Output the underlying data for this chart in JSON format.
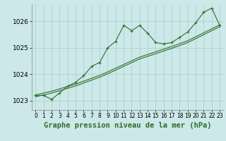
{
  "title": "Graphe pression niveau de la mer (hPa)",
  "background_color": "#cce8e8",
  "grid_color": "#aacccc",
  "line_color": "#2d6e2d",
  "xlim": [
    -0.5,
    23.5
  ],
  "ylim": [
    1022.65,
    1026.65
  ],
  "yticks": [
    1023,
    1024,
    1025,
    1026
  ],
  "xticks": [
    0,
    1,
    2,
    3,
    4,
    5,
    6,
    7,
    8,
    9,
    10,
    11,
    12,
    13,
    14,
    15,
    16,
    17,
    18,
    19,
    20,
    21,
    22,
    23
  ],
  "x": [
    0,
    1,
    2,
    3,
    4,
    5,
    6,
    7,
    8,
    9,
    10,
    11,
    12,
    13,
    14,
    15,
    16,
    17,
    18,
    19,
    20,
    21,
    22,
    23
  ],
  "y_main": [
    1023.2,
    1023.2,
    1023.05,
    1023.3,
    1023.55,
    1023.7,
    1023.95,
    1024.3,
    1024.45,
    1025.0,
    1025.25,
    1025.85,
    1025.65,
    1025.85,
    1025.55,
    1025.2,
    1025.15,
    1025.2,
    1025.4,
    1025.6,
    1025.95,
    1026.35,
    1026.5,
    1025.85
  ],
  "y_linear": [
    1023.15,
    1023.22,
    1023.29,
    1023.38,
    1023.47,
    1023.56,
    1023.67,
    1023.78,
    1023.89,
    1024.02,
    1024.16,
    1024.3,
    1024.44,
    1024.58,
    1024.68,
    1024.78,
    1024.88,
    1024.98,
    1025.09,
    1025.2,
    1025.35,
    1025.5,
    1025.65,
    1025.8
  ],
  "title_fontsize": 7.5,
  "tick_fontsize": 6.5
}
